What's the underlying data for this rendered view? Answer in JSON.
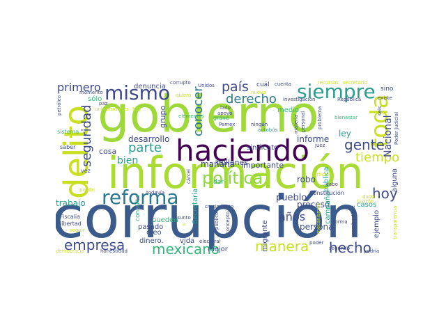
{
  "words": [
    {
      "text": "corrupción",
      "color": "#3b5b8c"
    },
    {
      "text": "gobierno",
      "color": "#9fd83a"
    },
    {
      "text": "información",
      "color": "#a8db34"
    },
    {
      "text": "haciendo",
      "color": "#440154"
    },
    {
      "text": "delito",
      "color": "#c8e020"
    },
    {
      "text": "toda",
      "color": "#c8e020"
    },
    {
      "text": "reforma",
      "color": "#2a788e"
    },
    {
      "text": "mismo",
      "color": "#3e4a89"
    },
    {
      "text": "siempre",
      "color": "#2a9d8f"
    },
    {
      "text": "país",
      "color": "#3e4a89"
    },
    {
      "text": "gente",
      "color": "#3e4a89"
    },
    {
      "text": "política",
      "color": "#8fd744"
    },
    {
      "text": "mexicano",
      "color": "#35b779"
    },
    {
      "text": "empresa",
      "color": "#3e4a89"
    },
    {
      "text": "manera",
      "color": "#c8e020"
    },
    {
      "text": "hecho",
      "color": "#3e4a89"
    },
    {
      "text": "hoy",
      "color": "#3e4a89"
    },
    {
      "text": "seguridad",
      "color": "#3e4a89"
    },
    {
      "text": "parte",
      "color": "#2a9d8f"
    },
    {
      "text": "conocer",
      "color": "#2a788e"
    },
    {
      "text": "derecho",
      "color": "#2a788e"
    },
    {
      "text": "tiempo",
      "color": "#c8e020"
    },
    {
      "text": "primero",
      "color": "#3e4a89"
    },
    {
      "text": "años",
      "color": "#3e4a89"
    },
    {
      "text": "Nacional",
      "color": "#3e4a89"
    },
    {
      "text": "bien",
      "color": "#2a9d8f"
    },
    {
      "text": "informe",
      "color": "#3e4a89"
    },
    {
      "text": "desarrollo",
      "color": "#3e4a89"
    },
    {
      "text": "cosa",
      "color": "#3e4a89"
    },
    {
      "text": "mañana",
      "color": "#3e4a89"
    },
    {
      "text": "trabajo",
      "color": "#2a9d8f"
    },
    {
      "text": "pueblo",
      "color": "#3e4a89"
    },
    {
      "text": "persona",
      "color": "#3e4a89"
    },
    {
      "text": "proceso",
      "color": "#3e4a89"
    },
    {
      "text": "importante",
      "color": "#3e4a89"
    },
    {
      "text": "millones",
      "color": "#3e4a89"
    },
    {
      "text": "denuncia",
      "color": "#3e4a89"
    },
    {
      "text": "sólo",
      "color": "#35b779"
    },
    {
      "text": "grupo",
      "color": "#3e4a89"
    },
    {
      "text": "robo",
      "color": "#3e4a89"
    },
    {
      "text": "ley",
      "color": "#2a9d8f"
    },
    {
      "text": "pública",
      "color": "#2a9d8f"
    },
    {
      "text": "alguna",
      "color": "#3e4a89"
    },
    {
      "text": "Secretaría",
      "color": "#2a9d8f"
    },
    {
      "text": "campaña",
      "color": "#2a9d8f"
    },
    {
      "text": "migrante",
      "color": "#3e4a89"
    },
    {
      "text": "ejemplo",
      "color": "#3e4a89"
    },
    {
      "text": "casos",
      "color": "#2a9d8f"
    },
    {
      "text": "dinero.",
      "color": "#3e4a89"
    },
    {
      "text": "vida",
      "color": "#3e4a89"
    },
    {
      "text": "mejor",
      "color": "#3e4a89"
    },
    {
      "text": "pasado",
      "color": "#3e4a89"
    },
    {
      "text": "creo",
      "color": "#3e4a89"
    },
    {
      "text": "pueden",
      "color": "#35b779"
    },
    {
      "text": "consulta",
      "color": "#35b779"
    },
    {
      "text": "medio",
      "color": "#35b779"
    },
    {
      "text": "grave",
      "color": "#35b779"
    },
    {
      "text": "sindicato",
      "color": "#3e4a89"
    },
    {
      "text": "dar",
      "color": "#35b779"
    },
    {
      "text": "Constitución",
      "color": "#3e4a89"
    },
    {
      "text": "cuál",
      "color": "#3e4a89"
    },
    {
      "text": "investigación",
      "color": "#3e4a89"
    },
    {
      "text": "juez",
      "color": "#3e4a89"
    },
    {
      "text": "sino",
      "color": "#3e4a89"
    },
    {
      "text": "existe",
      "color": "#3e4a89"
    },
    {
      "text": "Poder Judicial",
      "color": "#3e4a89"
    },
    {
      "text": "cabo",
      "color": "#3e4a89"
    },
    {
      "text": "vez",
      "color": "#3e4a89"
    },
    {
      "text": "saber",
      "color": "#3e4a89"
    },
    {
      "text": "sistema",
      "color": "#35b779"
    },
    {
      "text": "petróleo",
      "color": "#3e4a89"
    },
    {
      "text": "momento",
      "color": "#3e4a89"
    },
    {
      "text": "corrupto",
      "color": "#3e4a89"
    },
    {
      "text": "Unidos",
      "color": "#3e4a89"
    },
    {
      "text": "quiero",
      "color": "#c8e020"
    },
    {
      "text": "lado",
      "color": "#3e4a89"
    },
    {
      "text": "apoyo",
      "color": "#3e4a89"
    },
    {
      "text": "Pemex",
      "color": "#3e4a89"
    },
    {
      "text": "ningún",
      "color": "#3e4a89"
    },
    {
      "text": "cuenta",
      "color": "#3e4a89"
    },
    {
      "text": "recursos",
      "color": "#c8e020"
    },
    {
      "text": "secretario",
      "color": "#c8e020"
    },
    {
      "text": "República",
      "color": "#3e4a89"
    },
    {
      "text": "bienestar",
      "color": "#35b779"
    },
    {
      "text": "problema",
      "color": "#3e4a89"
    },
    {
      "text": "puedo",
      "color": "#c8e020"
    },
    {
      "text": "todavía",
      "color": "#3e4a89"
    },
    {
      "text": "cárcel",
      "color": "#3e4a89"
    },
    {
      "text": "Fiscalía",
      "color": "#3e4a89"
    },
    {
      "text": "libertad",
      "color": "#3e4a89"
    },
    {
      "text": "seguir",
      "color": "#c8e020"
    },
    {
      "text": "democracia",
      "color": "#c8e020"
    },
    {
      "text": "honestidad",
      "color": "#3e4a89"
    },
    {
      "text": "crecimiento",
      "color": "#3e4a89"
    },
    {
      "text": "asunto",
      "color": "#3e4a89"
    },
    {
      "text": "electoral",
      "color": "#3e4a89"
    },
    {
      "text": "público",
      "color": "#3e4a89"
    },
    {
      "text": "concepto",
      "color": "#3e4a89"
    },
    {
      "text": "poder",
      "color": "#3e4a89"
    },
    {
      "text": "segundo",
      "color": "#3e4a89"
    },
    {
      "text": "podría",
      "color": "#3e4a89"
    },
    {
      "text": "combustible",
      "color": "#3e4a89"
    },
    {
      "text": "forma",
      "color": "#3e4a89"
    },
    {
      "text": "cuánto",
      "color": "#c8e020"
    },
    {
      "text": "artículo",
      "color": "#c8e020"
    },
    {
      "text": "elementos",
      "color": "#35b779"
    },
    {
      "text": "ir",
      "color": "#c8e020"
    },
    {
      "text": "paz",
      "color": "#3e4a89"
    },
    {
      "text": "nueva",
      "color": "#c8e020"
    },
    {
      "text": "autobús",
      "color": "#2a9d8f"
    },
    {
      "text": "materia",
      "color": "#3e4a89"
    },
    {
      "text": "personal",
      "color": "#3e4a89"
    },
    {
      "text": "seis",
      "color": "#3e4a89"
    },
    {
      "text": "dado",
      "color": "#c8e020"
    },
    {
      "text": "universidades",
      "color": "#c8e020"
    },
    {
      "text": "mecanismos",
      "color": "#c8e020"
    },
    {
      "text": "transparencia",
      "color": "#c8e020"
    },
    {
      "text": "hay",
      "color": "#c8e020"
    }
  ]
}
